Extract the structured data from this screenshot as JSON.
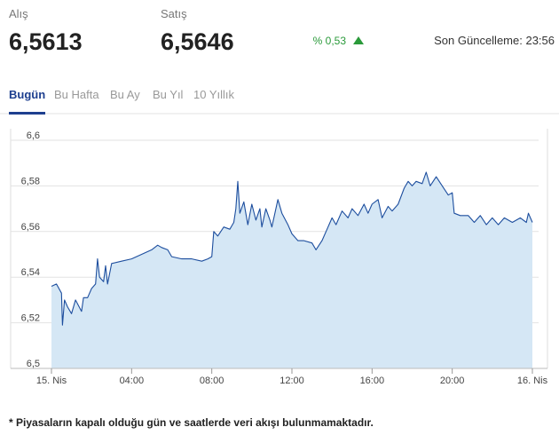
{
  "header": {
    "buy_label": "Alış",
    "buy_value": "6,5613",
    "sell_label": "Satış",
    "sell_value": "6,5646",
    "change": "% 0,53",
    "updated": "Son Güncelleme: 23:56"
  },
  "tabs": [
    "Bugün",
    "Bu Hafta",
    "Bu Ay",
    "Bu Yıl",
    "10 Yıllık"
  ],
  "footnote": "* Piyasaların kapalı olduğu gün ve saatlerde veri akışı bulunmamaktadır.",
  "chart_data": {
    "type": "area",
    "x": [
      0,
      0.25,
      0.5,
      0.55,
      0.65,
      0.8,
      1.0,
      1.2,
      1.5,
      1.6,
      1.8,
      2.0,
      2.2,
      2.3,
      2.4,
      2.6,
      2.7,
      2.8,
      3.0,
      3.5,
      4.0,
      4.5,
      5.0,
      5.3,
      5.5,
      5.8,
      6.0,
      6.5,
      7.0,
      7.5,
      7.8,
      8.0,
      8.1,
      8.3,
      8.6,
      8.9,
      9.1,
      9.2,
      9.3,
      9.4,
      9.6,
      9.8,
      10.0,
      10.2,
      10.4,
      10.5,
      10.7,
      10.9,
      11.0,
      11.3,
      11.5,
      11.8,
      12.0,
      12.3,
      12.6,
      13.0,
      13.2,
      13.5,
      13.8,
      14.0,
      14.2,
      14.5,
      14.8,
      15.0,
      15.3,
      15.6,
      15.8,
      16.0,
      16.3,
      16.5,
      16.8,
      17.0,
      17.3,
      17.6,
      17.8,
      18.0,
      18.2,
      18.5,
      18.7,
      18.9,
      19.2,
      19.5,
      19.8,
      20.0,
      20.1,
      20.4,
      20.8,
      21.1,
      21.4,
      21.7,
      22.0,
      22.3,
      22.6,
      23.0,
      23.4,
      23.7,
      23.8,
      24.0
    ],
    "series": [
      {
        "color": "#1d4e9e",
        "fill": "#d5e7f5",
        "values": [
          6.536,
          6.537,
          6.533,
          6.519,
          6.53,
          6.527,
          6.524,
          6.53,
          6.525,
          6.531,
          6.531,
          6.535,
          6.537,
          6.548,
          6.54,
          6.538,
          6.545,
          6.537,
          6.546,
          6.547,
          6.548,
          6.55,
          6.552,
          6.554,
          6.553,
          6.552,
          6.549,
          6.548,
          6.548,
          6.547,
          6.548,
          6.549,
          6.56,
          6.558,
          6.562,
          6.561,
          6.564,
          6.57,
          6.582,
          6.568,
          6.573,
          6.563,
          6.572,
          6.565,
          6.57,
          6.562,
          6.57,
          6.565,
          6.562,
          6.574,
          6.568,
          6.563,
          6.559,
          6.556,
          6.556,
          6.555,
          6.552,
          6.556,
          6.562,
          6.566,
          6.563,
          6.569,
          6.566,
          6.57,
          6.567,
          6.572,
          6.568,
          6.572,
          6.574,
          6.566,
          6.571,
          6.569,
          6.572,
          6.579,
          6.582,
          6.58,
          6.582,
          6.581,
          6.586,
          6.58,
          6.584,
          6.58,
          6.576,
          6.577,
          6.568,
          6.567,
          6.567,
          6.564,
          6.567,
          6.563,
          6.566,
          6.563,
          6.566,
          6.564,
          6.566,
          6.564,
          6.568,
          6.564
        ]
      }
    ],
    "xlim": [
      0,
      24
    ],
    "xticks": [
      {
        "value": 0,
        "label": "15. Nis"
      },
      {
        "value": 4,
        "label": "04:00"
      },
      {
        "value": 8,
        "label": "08:00"
      },
      {
        "value": 12,
        "label": "12:00"
      },
      {
        "value": 16,
        "label": "16:00"
      },
      {
        "value": 20,
        "label": "20:00"
      },
      {
        "value": 24,
        "label": "16. Nis"
      }
    ],
    "ylim": [
      6.5,
      6.6
    ],
    "yticks": [
      {
        "value": 6.5,
        "label": "6,5"
      },
      {
        "value": 6.52,
        "label": "6,52"
      },
      {
        "value": 6.54,
        "label": "6,54"
      },
      {
        "value": 6.56,
        "label": "6,56"
      },
      {
        "value": 6.58,
        "label": "6,58"
      },
      {
        "value": 6.6,
        "label": "6,6"
      }
    ],
    "grid": true
  }
}
